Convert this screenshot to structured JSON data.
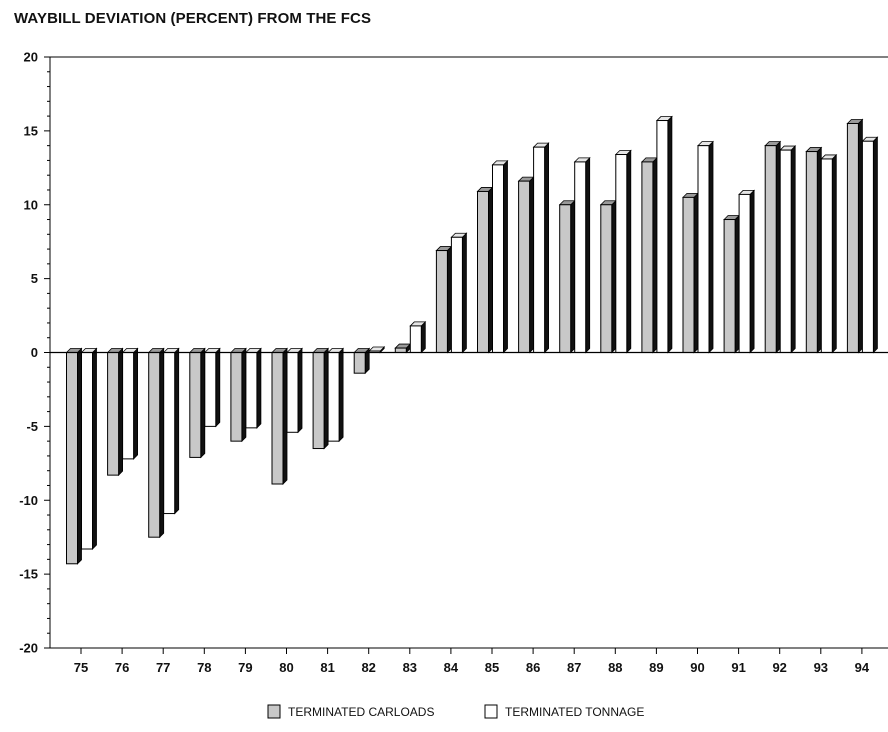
{
  "chart_data": {
    "type": "bar",
    "title": "WAYBILL DEVIATION (PERCENT) FROM THE FCS",
    "xlabel": "",
    "ylabel": "",
    "ylim": [
      -20,
      20
    ],
    "yticks": [
      "20",
      "15",
      "10",
      "5",
      "0",
      "-5",
      "-10",
      "-15",
      "-20"
    ],
    "categories": [
      "75",
      "76",
      "77",
      "78",
      "79",
      "80",
      "81",
      "82",
      "83",
      "84",
      "85",
      "86",
      "87",
      "88",
      "89",
      "90",
      "91",
      "92",
      "93",
      "94"
    ],
    "series": [
      {
        "name": "TERMINATED CARLOADS",
        "color": "#c8c8c8",
        "values": [
          -14.3,
          -8.3,
          -12.5,
          -7.1,
          -6.0,
          -8.9,
          -6.5,
          -1.4,
          0.3,
          6.9,
          10.9,
          11.6,
          10.0,
          10.0,
          12.9,
          10.5,
          9.0,
          14.0,
          13.6,
          15.5
        ]
      },
      {
        "name": "TERMINATED TONNAGE",
        "color": "#ffffff",
        "values": [
          -13.3,
          -7.2,
          -10.9,
          -5.0,
          -5.1,
          -5.4,
          -6.0,
          0.1,
          1.8,
          7.8,
          12.7,
          13.9,
          12.9,
          13.4,
          15.7,
          14.0,
          10.7,
          13.7,
          13.1,
          14.3
        ]
      }
    ],
    "grid": false,
    "legend_position": "bottom-center"
  }
}
